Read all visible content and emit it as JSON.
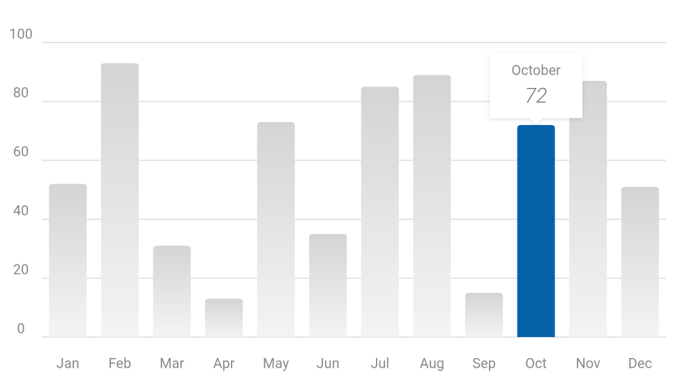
{
  "chart_data": {
    "type": "bar",
    "categories": [
      "Jan",
      "Feb",
      "Mar",
      "Apr",
      "May",
      "Jun",
      "Jul",
      "Aug",
      "Sep",
      "Oct",
      "Nov",
      "Dec"
    ],
    "values": [
      52,
      93,
      31,
      13,
      73,
      35,
      85,
      89,
      15,
      72,
      87,
      51
    ],
    "color": "#d4d4d4",
    "highlight_color": "#0561a8",
    "ylim": [
      0,
      100
    ],
    "yticks": [
      0,
      20,
      40,
      60,
      80,
      100
    ],
    "grid": true,
    "tooltip": {
      "index": 9,
      "label": "October"
    }
  }
}
